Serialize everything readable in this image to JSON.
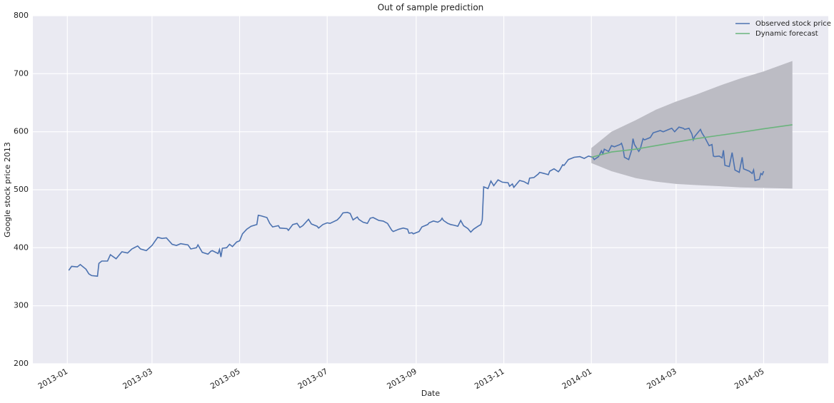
{
  "chart_data": {
    "type": "line",
    "title": "Out of sample prediction",
    "xlabel": "Date",
    "ylabel": "Google stock price 2013",
    "xlim": [
      "2012-12-08",
      "2014-06-15"
    ],
    "xticks": [
      {
        "value": "2013-01-01",
        "label": "2013-01"
      },
      {
        "value": "2013-03-01",
        "label": "2013-03"
      },
      {
        "value": "2013-05-01",
        "label": "2013-05"
      },
      {
        "value": "2013-07-01",
        "label": "2013-07"
      },
      {
        "value": "2013-09-01",
        "label": "2013-09"
      },
      {
        "value": "2013-11-01",
        "label": "2013-11"
      },
      {
        "value": "2014-01-01",
        "label": "2014-01"
      },
      {
        "value": "2014-03-01",
        "label": "2014-03"
      },
      {
        "value": "2014-05-01",
        "label": "2014-05"
      }
    ],
    "ylim": [
      200,
      800
    ],
    "yticks": [
      200,
      300,
      400,
      500,
      600,
      700,
      800
    ],
    "grid": true,
    "legend": "upper right",
    "series": [
      {
        "name": "Observed stock price",
        "color": "#4c72b0",
        "x": [
          "2013-01-02",
          "2013-01-04",
          "2013-01-08",
          "2013-01-10",
          "2013-01-14",
          "2013-01-16",
          "2013-01-18",
          "2013-01-22",
          "2013-01-23",
          "2013-01-25",
          "2013-01-29",
          "2013-01-31",
          "2013-02-04",
          "2013-02-08",
          "2013-02-12",
          "2013-02-15",
          "2013-02-19",
          "2013-02-21",
          "2013-02-25",
          "2013-03-01",
          "2013-03-05",
          "2013-03-08",
          "2013-03-11",
          "2013-03-15",
          "2013-03-18",
          "2013-03-21",
          "2013-03-26",
          "2013-03-28",
          "2013-04-01",
          "2013-04-02",
          "2013-04-05",
          "2013-04-09",
          "2013-04-11",
          "2013-04-12",
          "2013-04-16",
          "2013-04-17",
          "2013-04-18",
          "2013-04-19",
          "2013-04-22",
          "2013-04-24",
          "2013-04-26",
          "2013-04-29",
          "2013-05-01",
          "2013-05-03",
          "2013-05-06",
          "2013-05-09",
          "2013-05-13",
          "2013-05-14",
          "2013-05-16",
          "2013-05-20",
          "2013-05-22",
          "2013-05-24",
          "2013-05-28",
          "2013-05-29",
          "2013-06-03",
          "2013-06-04",
          "2013-06-07",
          "2013-06-10",
          "2013-06-12",
          "2013-06-14",
          "2013-06-18",
          "2013-06-20",
          "2013-06-24",
          "2013-06-25",
          "2013-06-28",
          "2013-07-01",
          "2013-07-03",
          "2013-07-08",
          "2013-07-10",
          "2013-07-12",
          "2013-07-15",
          "2013-07-17",
          "2013-07-19",
          "2013-07-22",
          "2013-07-23",
          "2013-07-26",
          "2013-07-29",
          "2013-07-31",
          "2013-08-02",
          "2013-08-06",
          "2013-08-09",
          "2013-08-12",
          "2013-08-15",
          "2013-08-16",
          "2013-08-20",
          "2013-08-23",
          "2013-08-26",
          "2013-08-27",
          "2013-08-29",
          "2013-08-30",
          "2013-09-03",
          "2013-09-05",
          "2013-09-09",
          "2013-09-10",
          "2013-09-13",
          "2013-09-16",
          "2013-09-18",
          "2013-09-19",
          "2013-09-20",
          "2013-09-23",
          "2013-09-25",
          "2013-09-27",
          "2013-09-30",
          "2013-10-02",
          "2013-10-04",
          "2013-10-07",
          "2013-10-09",
          "2013-10-11",
          "2013-10-14",
          "2013-10-16",
          "2013-10-17",
          "2013-10-18",
          "2013-10-21",
          "2013-10-23",
          "2013-10-25",
          "2013-10-28",
          "2013-10-31",
          "2013-11-04",
          "2013-11-05",
          "2013-11-07",
          "2013-11-08",
          "2013-11-12",
          "2013-11-15",
          "2013-11-18",
          "2013-11-19",
          "2013-11-22",
          "2013-11-25",
          "2013-11-26",
          "2013-11-29",
          "2013-12-02",
          "2013-12-03",
          "2013-12-06",
          "2013-12-09",
          "2013-12-10",
          "2013-12-12",
          "2013-12-13",
          "2013-12-16",
          "2013-12-18",
          "2013-12-20",
          "2013-12-24",
          "2013-12-27",
          "2013-12-30",
          "2014-01-02",
          "2014-01-03",
          "2014-01-06",
          "2014-01-08",
          "2014-01-09",
          "2014-01-10",
          "2014-01-13",
          "2014-01-15",
          "2014-01-17",
          "2014-01-21",
          "2014-01-22",
          "2014-01-23",
          "2014-01-24",
          "2014-01-27",
          "2014-01-29",
          "2014-01-30",
          "2014-01-31",
          "2014-02-03",
          "2014-02-04",
          "2014-02-06",
          "2014-02-07",
          "2014-02-11",
          "2014-02-13",
          "2014-02-18",
          "2014-02-20",
          "2014-02-24",
          "2014-02-26",
          "2014-02-28",
          "2014-03-03",
          "2014-03-06",
          "2014-03-07",
          "2014-03-10",
          "2014-03-12",
          "2014-03-13",
          "2014-03-14",
          "2014-03-18",
          "2014-03-19",
          "2014-03-21",
          "2014-03-24",
          "2014-03-26",
          "2014-03-27",
          "2014-03-28",
          "2014-03-31",
          "2014-04-02",
          "2014-04-03",
          "2014-04-04",
          "2014-04-07",
          "2014-04-09",
          "2014-04-11",
          "2014-04-14",
          "2014-04-16",
          "2014-04-17",
          "2014-04-21",
          "2014-04-23",
          "2014-04-24",
          "2014-04-25",
          "2014-04-28",
          "2014-04-29",
          "2014-04-30",
          "2014-05-01"
        ],
        "values": [
          361,
          368,
          367,
          371,
          363,
          355,
          352,
          351,
          373,
          377,
          377,
          388,
          381,
          393,
          391,
          398,
          403,
          398,
          395,
          404,
          418,
          416,
          417,
          406,
          404,
          407,
          405,
          398,
          400,
          405,
          392,
          389,
          394,
          395,
          390,
          397,
          384,
          399,
          400,
          406,
          402,
          410,
          412,
          424,
          432,
          437,
          440,
          456,
          455,
          452,
          442,
          436,
          438,
          434,
          433,
          430,
          440,
          442,
          435,
          438,
          449,
          441,
          437,
          434,
          440,
          443,
          442,
          448,
          453,
          460,
          461,
          459,
          448,
          453,
          449,
          444,
          442,
          451,
          452,
          447,
          446,
          442,
          430,
          428,
          432,
          434,
          432,
          425,
          426,
          424,
          428,
          436,
          440,
          443,
          446,
          444,
          447,
          451,
          447,
          442,
          440,
          439,
          437,
          447,
          438,
          433,
          427,
          432,
          437,
          440,
          448,
          505,
          502,
          515,
          507,
          517,
          513,
          512,
          506,
          510,
          504,
          516,
          514,
          510,
          520,
          521,
          527,
          530,
          528,
          526,
          532,
          536,
          531,
          534,
          543,
          542,
          552,
          554,
          556,
          557,
          554,
          558,
          556,
          552,
          557,
          567,
          562,
          570,
          566,
          576,
          574,
          578,
          580,
          572,
          556,
          552,
          568,
          588,
          578,
          566,
          570,
          588,
          586,
          590,
          598,
          602,
          600,
          604,
          606,
          600,
          608,
          606,
          604,
          606,
          596,
          586,
          592,
          604,
          598,
          590,
          576,
          578,
          558,
          557,
          558,
          555,
          568,
          542,
          540,
          564,
          534,
          530,
          556,
          536,
          532,
          528,
          534,
          516,
          518,
          528,
          526,
          532
        ]
      },
      {
        "name": "Dynamic forecast",
        "color": "#6ab47c",
        "x": [
          "2014-01-01",
          "2014-01-15",
          "2014-02-01",
          "2014-02-15",
          "2014-03-01",
          "2014-03-15",
          "2014-04-01",
          "2014-04-15",
          "2014-05-01",
          "2014-05-21"
        ],
        "values": [
          556,
          565,
          570,
          576,
          582,
          588,
          594,
          599,
          605,
          612
        ]
      }
    ],
    "band": {
      "color": "#bcbcc4",
      "x": [
        "2014-01-01",
        "2014-01-15",
        "2014-02-01",
        "2014-02-15",
        "2014-03-01",
        "2014-03-15",
        "2014-04-01",
        "2014-04-15",
        "2014-05-01",
        "2014-05-21"
      ],
      "lower": [
        546,
        532,
        520,
        514,
        510,
        508,
        506,
        504,
        503,
        502
      ],
      "upper": [
        572,
        600,
        620,
        638,
        652,
        664,
        680,
        692,
        704,
        722
      ]
    }
  }
}
